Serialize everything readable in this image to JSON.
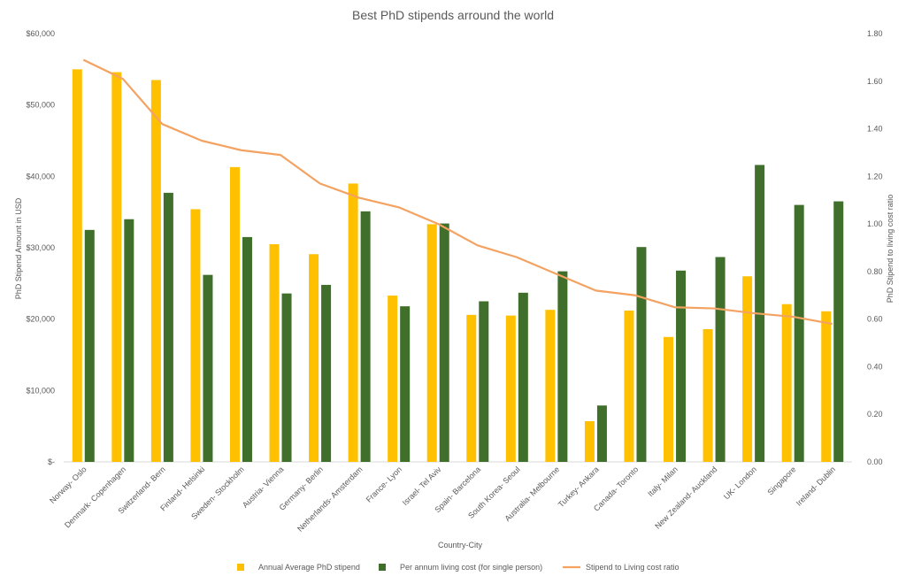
{
  "chart_data": {
    "type": "bar",
    "title": "Best PhD stipends arround the world",
    "xlabel": "Country-City",
    "ylabel": "PhD Stipend Amount in USD",
    "y2label": "PhD Stipend to living cost ratio",
    "ylim": [
      0,
      60000
    ],
    "y2lim": [
      0,
      1.8
    ],
    "yticks": [
      "$-",
      "$10,000",
      "$20,000",
      "$30,000",
      "$40,000",
      "$50,000",
      "$60,000"
    ],
    "y2ticks": [
      "0.00",
      "0.20",
      "0.40",
      "0.60",
      "0.80",
      "1.00",
      "1.20",
      "1.40",
      "1.60",
      "1.80"
    ],
    "grid": false,
    "legend_position": "bottom",
    "categories": [
      "Norway- Oslo",
      "Denmark- Copenhagen",
      "Switzerland- Bern",
      "Finland- Helsinki",
      "Sweden- Stockholm",
      "Austria- Vienna",
      "Germany- Berlin",
      "Netherlands- Amsterdam",
      "France- Lyon",
      "Israel- Tel Aviv",
      "Spain- Barcelona",
      "South Korea- Seoul",
      "Australia- Melbourne",
      "Turkey- Ankara",
      "Canada- Toronto",
      "Italy- Milan",
      "New Zealand- Auckland",
      "UK- London",
      "Singapore",
      "Ireland- Dublin"
    ],
    "series": [
      {
        "name": "Annual Average PhD stipend",
        "type": "bar",
        "axis": "left",
        "color": "#FFC000",
        "values": [
          55000,
          54600,
          53500,
          35400,
          41300,
          30500,
          29100,
          39000,
          23300,
          33300,
          20600,
          20500,
          21300,
          5700,
          21200,
          17500,
          18600,
          26000,
          22100,
          21100
        ]
      },
      {
        "name": "Per annum living cost (for single person)",
        "type": "bar",
        "axis": "left",
        "color": "#3F6F2A",
        "values": [
          32500,
          34000,
          37700,
          26200,
          31500,
          23600,
          24800,
          35100,
          21800,
          33400,
          22500,
          23700,
          26700,
          7900,
          30100,
          26800,
          28700,
          41600,
          36000,
          36500
        ]
      },
      {
        "name": "Stipend to Living cost ratio",
        "type": "line",
        "axis": "right",
        "color": "#F4A261",
        "values": [
          1.69,
          1.61,
          1.42,
          1.35,
          1.31,
          1.29,
          1.17,
          1.11,
          1.07,
          1.0,
          0.91,
          0.86,
          0.79,
          0.72,
          0.7,
          0.65,
          0.645,
          0.625,
          0.61,
          0.58
        ]
      }
    ]
  }
}
